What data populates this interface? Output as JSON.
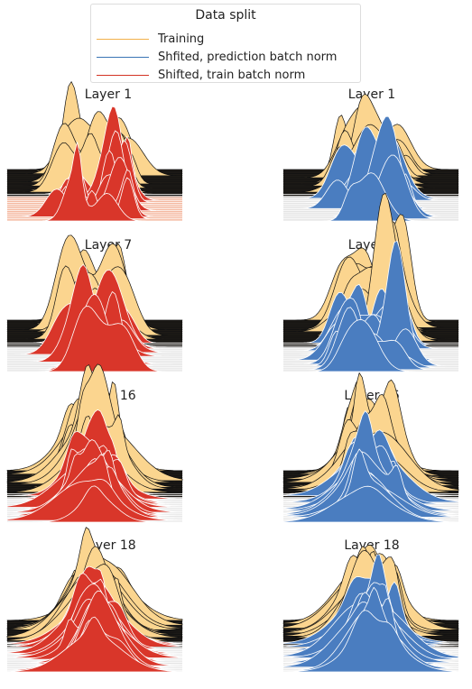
{
  "legend": {
    "title": "Data split",
    "entries": [
      {
        "label": "Training",
        "color": "#f2b04a"
      },
      {
        "label": "Shfited, prediction batch norm",
        "color": "#3a74b5"
      },
      {
        "label": "Shifted, train batch norm",
        "color": "#d33324"
      }
    ]
  },
  "colors": {
    "back_fill": "#fbd58f",
    "front_red": "#d9362a",
    "front_blue": "#4a7dc0",
    "dark": "#1e1b17"
  },
  "chart_data": [
    {
      "type": "area",
      "title": "Layer 1",
      "column": "left",
      "layer": 1,
      "split": "Shifted, train batch norm"
    },
    {
      "type": "area",
      "title": "Layer 1",
      "column": "right",
      "layer": 1,
      "split": "Shfited, prediction batch norm"
    },
    {
      "type": "area",
      "title": "Layer 7",
      "column": "left",
      "layer": 7,
      "split": "Shifted, train batch norm"
    },
    {
      "type": "area",
      "title": "Layer 7",
      "column": "right",
      "layer": 7,
      "split": "Shfited, prediction batch norm"
    },
    {
      "type": "area",
      "title": "Layer 16",
      "column": "left",
      "layer": 16,
      "split": "Shifted, train batch norm"
    },
    {
      "type": "area",
      "title": "Layer 16",
      "column": "right",
      "layer": 16,
      "split": "Shfited, prediction batch norm"
    },
    {
      "type": "area",
      "title": "Layer 18",
      "column": "left",
      "layer": 18,
      "split": "Shifted, train batch norm"
    },
    {
      "type": "area",
      "title": "Layer 18",
      "column": "right",
      "layer": 18,
      "split": "Shfited, prediction batch norm"
    }
  ]
}
